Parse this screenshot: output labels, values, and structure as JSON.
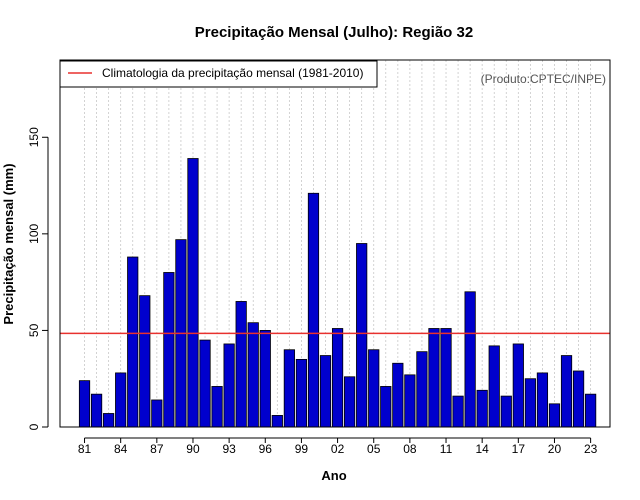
{
  "chart_data": {
    "type": "bar",
    "title": "Precipitação Mensal (Julho): Região 32",
    "xlabel": "Ano",
    "ylabel": "Precipitação mensal (mm)",
    "source": "(Produto:CPTEC/INPE)",
    "ylim": [
      0,
      190
    ],
    "y_ticks": [
      0,
      50,
      100,
      150
    ],
    "categories": [
      "81",
      "82",
      "83",
      "84",
      "85",
      "86",
      "87",
      "88",
      "89",
      "90",
      "91",
      "92",
      "93",
      "94",
      "95",
      "96",
      "97",
      "98",
      "99",
      "00",
      "01",
      "02",
      "03",
      "04",
      "05",
      "06",
      "07",
      "08",
      "09",
      "10",
      "11",
      "12",
      "13",
      "14",
      "15",
      "16",
      "17",
      "18",
      "19",
      "20",
      "21",
      "22",
      "23"
    ],
    "x_tick_labels": [
      "81",
      "84",
      "87",
      "90",
      "93",
      "96",
      "99",
      "02",
      "05",
      "08",
      "11",
      "14",
      "17",
      "20",
      "23"
    ],
    "series": [
      {
        "name": "Precipitação mensal",
        "color": "#0000cd",
        "values": [
          24,
          17,
          7,
          28,
          88,
          68,
          14,
          80,
          97,
          139,
          45,
          21,
          43,
          65,
          54,
          50,
          6,
          40,
          35,
          121,
          37,
          51,
          26,
          95,
          40,
          21,
          33,
          27,
          39,
          51,
          51,
          16,
          70,
          19,
          42,
          16,
          43,
          25,
          28,
          12,
          37,
          29,
          17
        ]
      }
    ],
    "reference_line": {
      "label": "Climatologia da precipitação mensal (1981-2010)",
      "value": 48.5,
      "color": "#e8312e"
    },
    "legend_position": "top-left"
  }
}
